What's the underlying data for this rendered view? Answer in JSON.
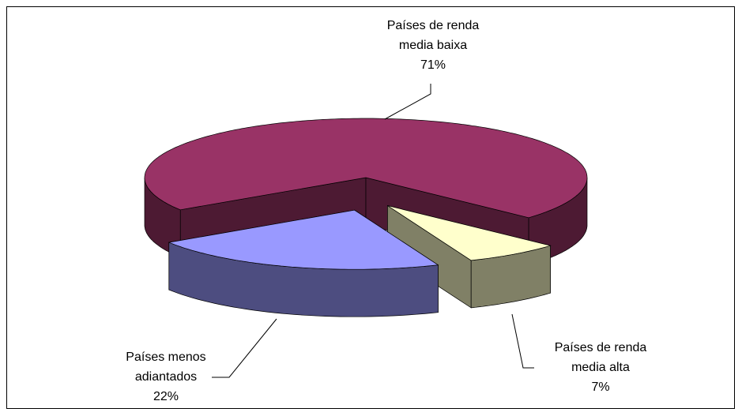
{
  "chart_data": {
    "type": "pie",
    "categories": [
      "Países de renda media baixa",
      "Países de renda media alta",
      "Países menos adiantados"
    ],
    "values": [
      71,
      7,
      22
    ],
    "value_labels": [
      "71%",
      "7%",
      "22%"
    ],
    "colors": [
      "#993366",
      "#ffffcc",
      "#9999ff"
    ],
    "exploded": [
      false,
      true,
      true
    ]
  }
}
